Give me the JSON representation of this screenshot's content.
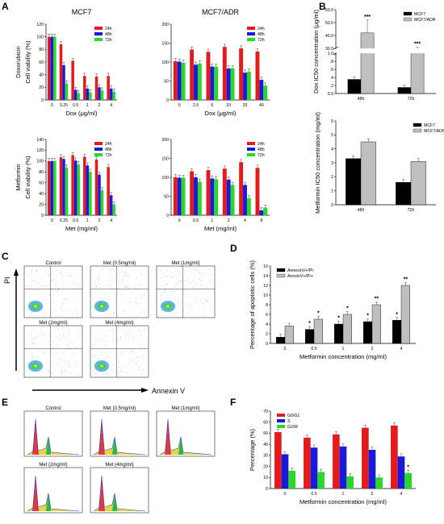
{
  "panel_letters": [
    "A",
    "B",
    "C",
    "D",
    "E",
    "F"
  ],
  "colors": {
    "c24h": "#e41a1c",
    "c48h": "#1a1adc",
    "c72h": "#29d829",
    "mcf7": "#000000",
    "adr": "#bfbfbf"
  },
  "chart_data": [
    {
      "id": "a1",
      "type": "bar",
      "title": "MCF7",
      "rowlabel": "Doxorubicin",
      "ylabel": "Cell viability (%)",
      "xlabel": "Dox (μg/ml)",
      "categories": [
        "0",
        "0.25",
        "0.5",
        "1",
        "2",
        "4"
      ],
      "ylim": [
        0,
        120
      ],
      "yticks": [
        "0",
        "20",
        "40",
        "60",
        "80",
        "100",
        "120"
      ],
      "legend": "top-right",
      "series": [
        {
          "name": "24h",
          "color": "#e41a1c",
          "values": [
            100,
            88,
            62,
            38,
            37,
            38
          ]
        },
        {
          "name": "48h",
          "color": "#1a1adc",
          "values": [
            100,
            55,
            16,
            18,
            20,
            18
          ]
        },
        {
          "name": "72h",
          "color": "#29d829",
          "values": [
            100,
            26,
            11,
            12,
            15,
            13
          ]
        }
      ]
    },
    {
      "id": "a2",
      "type": "bar",
      "title": "MCF7/ADR",
      "rowlabel": "",
      "ylabel": "",
      "xlabel": "Dox (μg/ml)",
      "categories": [
        "0",
        "2.5",
        "5",
        "10",
        "20",
        "40"
      ],
      "ylim": [
        0,
        200
      ],
      "yticks": [
        "0",
        "50",
        "100",
        "150",
        "200"
      ],
      "legend": "top-right",
      "series": [
        {
          "name": "24h",
          "color": "#e41a1c",
          "values": [
            102,
            133,
            127,
            140,
            136,
            128
          ]
        },
        {
          "name": "48h",
          "color": "#1a1adc",
          "values": [
            101,
            93,
            88,
            83,
            72,
            53
          ]
        },
        {
          "name": "72h",
          "color": "#29d829",
          "values": [
            98,
            96,
            88,
            84,
            75,
            38
          ]
        }
      ]
    },
    {
      "id": "a3",
      "type": "bar",
      "title": "",
      "rowlabel": "Metformin",
      "ylabel": "Cell viability (%)",
      "xlabel": "Met (mg/ml)",
      "categories": [
        "0",
        "0.25",
        "0.5",
        "1",
        "2",
        "4"
      ],
      "ylim": [
        0,
        140
      ],
      "yticks": [
        "0",
        "20",
        "40",
        "60",
        "80",
        "100",
        "120",
        "140"
      ],
      "legend": "top-right",
      "series": [
        {
          "name": "24h",
          "color": "#e41a1c",
          "values": [
            100,
            107,
            111,
            108,
            103,
            89
          ]
        },
        {
          "name": "48h",
          "color": "#1a1adc",
          "values": [
            100,
            104,
            101,
            92,
            75,
            37
          ]
        },
        {
          "name": "72h",
          "color": "#29d829",
          "values": [
            100,
            88,
            94,
            80,
            46,
            20
          ]
        }
      ]
    },
    {
      "id": "a4",
      "type": "bar",
      "title": "",
      "rowlabel": "",
      "ylabel": "",
      "xlabel": "Met (mg/ml)",
      "categories": [
        "0",
        "0.5",
        "1",
        "2",
        "4",
        "8"
      ],
      "ylim": [
        0,
        200
      ],
      "yticks": [
        "0",
        "50",
        "100",
        "150",
        "200"
      ],
      "legend": "top-right",
      "series": [
        {
          "name": "24h",
          "color": "#e41a1c",
          "values": [
            100,
            116,
            119,
            123,
            140,
            125
          ]
        },
        {
          "name": "48h",
          "color": "#1a1adc",
          "values": [
            99,
            100,
            97,
            94,
            80,
            13
          ]
        },
        {
          "name": "72h",
          "color": "#29d829",
          "values": [
            99,
            88,
            95,
            80,
            45,
            20
          ]
        }
      ]
    },
    {
      "id": "b1",
      "type": "bar",
      "title": "",
      "rowlabel": "",
      "ylabel": "Dox IC50 concentration (μg/ml)",
      "xlabel": "",
      "categories": [
        "48h",
        "72h"
      ],
      "yticks": [
        "0.0",
        ".2",
        ".4",
        ".6",
        ".8",
        "1.0",
        "30.0",
        "40.0",
        "50.0",
        "60.0"
      ],
      "axis_break": [
        1.0,
        30.0
      ],
      "legend": "top-right",
      "series": [
        {
          "name": "MCF7",
          "color": "#000000",
          "values": [
            0.35,
            0.15
          ]
        },
        {
          "name": "MCF7/ADR",
          "color": "#bfbfbf",
          "values": [
            42,
            29
          ]
        }
      ],
      "annotations": [
        "***",
        "***"
      ]
    },
    {
      "id": "b2",
      "type": "bar",
      "title": "",
      "rowlabel": "",
      "ylabel": "Metformin IC50 concentration (mg/ml)",
      "xlabel": "",
      "categories": [
        "48h",
        "72h"
      ],
      "ylim": [
        0,
        6
      ],
      "yticks": [
        "0",
        "1",
        "2",
        "3",
        "4",
        "5",
        "6"
      ],
      "legend": "top-right",
      "series": [
        {
          "name": "MCF7",
          "color": "#000000",
          "values": [
            3.3,
            1.6
          ]
        },
        {
          "name": "MCF7/ADR",
          "color": "#bfbfbf",
          "values": [
            4.5,
            3.1
          ]
        }
      ]
    },
    {
      "id": "d",
      "type": "bar",
      "title": "",
      "rowlabel": "",
      "ylabel": "Percentage of apoptotic cells (%)",
      "xlabel": "Metformin concentration (mg/ml)",
      "categories": [
        "0",
        "0.5",
        "1",
        "2",
        "4"
      ],
      "ylim": [
        0,
        16
      ],
      "yticks": [
        "0",
        "2",
        "4",
        "6",
        "8",
        "10",
        "12",
        "14",
        "16"
      ],
      "legend": "top-left",
      "series": [
        {
          "name": "AnnexinV+/PI-",
          "color": "#000000",
          "values": [
            1.3,
            2.9,
            4.0,
            4.5,
            4.8
          ]
        },
        {
          "name": "AnnxinV+/PI+",
          "color": "#bfbfbf",
          "values": [
            3.6,
            5.0,
            6.0,
            8.0,
            12.0
          ]
        }
      ],
      "annotations": [
        [
          "",
          ""
        ],
        [
          "*",
          "*"
        ],
        [
          "*",
          "*"
        ],
        [
          "*",
          "**"
        ],
        [
          "*",
          "**"
        ]
      ]
    },
    {
      "id": "f",
      "type": "bar",
      "title": "",
      "rowlabel": "",
      "ylabel": "Percentage (%)",
      "xlabel": "Metformin concentration (mg/ml)",
      "categories": [
        "0",
        "0.5",
        "1",
        "2",
        "4"
      ],
      "ylim": [
        0,
        70
      ],
      "yticks": [
        "0",
        "10",
        "20",
        "30",
        "40",
        "50",
        "60",
        "70"
      ],
      "legend": "top-left",
      "series": [
        {
          "name": "G0/G1",
          "color": "#e41a1c",
          "values": [
            51,
            46,
            49,
            55,
            57
          ]
        },
        {
          "name": "S",
          "color": "#1a1adc",
          "values": [
            31,
            37,
            38,
            35,
            29
          ]
        },
        {
          "name": "G2/M",
          "color": "#29d829",
          "values": [
            16,
            15,
            11,
            10,
            14
          ]
        }
      ],
      "annotations": [
        "",
        "",
        "",
        "",
        "*"
      ]
    }
  ],
  "panel_c": {
    "axis_y": "PI",
    "axis_x": "Annexin V",
    "plots": [
      "Control",
      "Met (0.5mg/ml)",
      "Met (1mg/ml)",
      "Met (2mg/ml)",
      "Met (4mg/ml)"
    ]
  },
  "panel_e": {
    "plots": [
      "Control",
      "Met (0.5mg/ml)",
      "Met (1mg/ml)",
      "Met (2mg/ml)",
      "Met (4mg/ml)"
    ]
  }
}
